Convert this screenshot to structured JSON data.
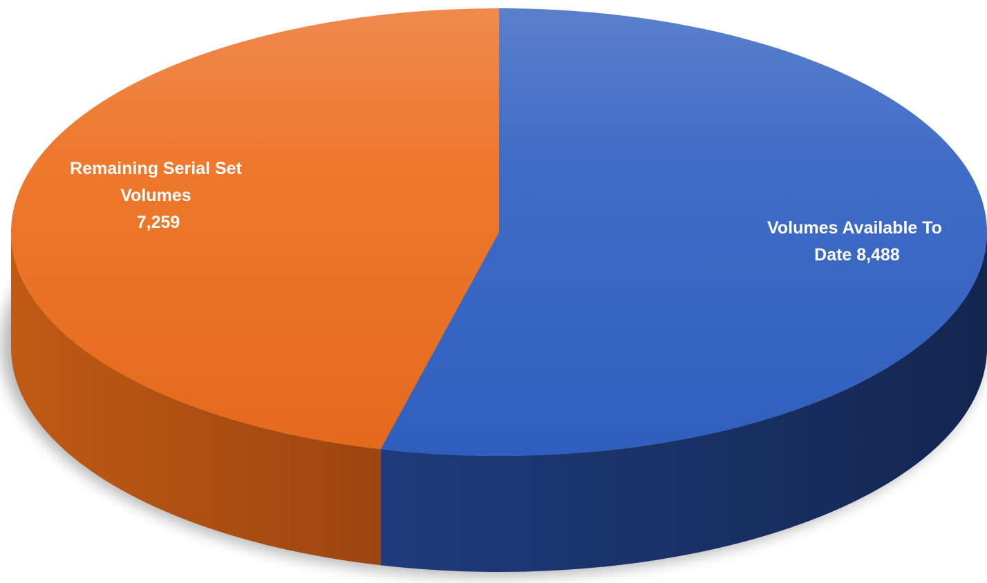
{
  "chart_data": {
    "type": "pie",
    "style": "3d",
    "legend": "none",
    "slices": [
      {
        "label_lines": [
          "Volumes Available To",
          "Date 8,488"
        ],
        "category": "Volumes Available To Date",
        "value": 8488,
        "color": "#3366c4",
        "side_color": "#1e3c78"
      },
      {
        "label_lines": [
          "Remaining Serial Set",
          "Volumes",
          "7,259"
        ],
        "category": "Remaining Serial Set Volumes",
        "value": 7259,
        "color": "#ec7628",
        "side_color": "#b35414"
      }
    ]
  }
}
